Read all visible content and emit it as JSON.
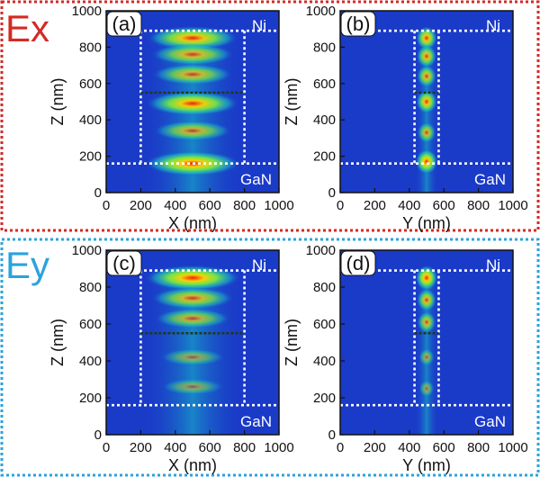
{
  "chart_data": [
    {
      "id": "a",
      "panel_label": "(a)",
      "type": "heatmap",
      "row": "Ex",
      "xlabel": "X (nm)",
      "ylabel": "Z (nm)",
      "xlim": [
        0,
        1000
      ],
      "ylim": [
        0,
        1000
      ],
      "xticks": [
        "0",
        "200",
        "400",
        "600",
        "800",
        "1000"
      ],
      "yticks": [
        "0",
        "200",
        "400",
        "600",
        "800",
        "1000"
      ],
      "region_top": "Ni",
      "region_bottom": "GaN",
      "ni_interface_z": 890,
      "gan_interface_z": 160,
      "inner_interface_z": 550,
      "pillar_x": [
        200,
        800
      ],
      "field_center_x": 500,
      "field_width_x": 600,
      "hotspots_z": [
        850,
        760,
        650,
        490,
        340,
        160
      ],
      "hotspot_intensity": [
        0.85,
        0.65,
        0.6,
        0.9,
        0.55,
        0.95
      ]
    },
    {
      "id": "b",
      "panel_label": "(b)",
      "type": "heatmap",
      "row": "Ex",
      "xlabel": "Y (nm)",
      "ylabel": "Z (nm)",
      "xlim": [
        0,
        1000
      ],
      "ylim": [
        0,
        1000
      ],
      "xticks": [
        "0",
        "200",
        "400",
        "600",
        "800",
        "1000"
      ],
      "yticks": [
        "0",
        "200",
        "400",
        "600",
        "800",
        "1000"
      ],
      "region_top": "Ni",
      "region_bottom": "GaN",
      "ni_interface_z": 890,
      "gan_interface_z": 160,
      "inner_interface_z": 550,
      "pillar_x": [
        430,
        570
      ],
      "field_center_x": 500,
      "field_width_x": 140,
      "hotspots_z": [
        850,
        750,
        640,
        500,
        330,
        170
      ],
      "hotspot_intensity": [
        0.85,
        0.75,
        0.7,
        0.85,
        0.6,
        0.95
      ]
    },
    {
      "id": "c",
      "panel_label": "(c)",
      "type": "heatmap",
      "row": "Ey",
      "xlabel": "X (nm)",
      "ylabel": "Z (nm)",
      "xlim": [
        0,
        1000
      ],
      "ylim": [
        0,
        1000
      ],
      "xticks": [
        "0",
        "200",
        "400",
        "600",
        "800",
        "1000"
      ],
      "yticks": [
        "0",
        "200",
        "400",
        "600",
        "800",
        "1000"
      ],
      "region_top": "Ni",
      "region_bottom": "GaN",
      "ni_interface_z": 890,
      "gan_interface_z": 160,
      "inner_interface_z": 550,
      "pillar_x": [
        200,
        800
      ],
      "field_center_x": 500,
      "field_width_x": 600,
      "hotspots_z": [
        850,
        740,
        630,
        420,
        260
      ],
      "hotspot_intensity": [
        0.95,
        0.65,
        0.5,
        0.25,
        0.2
      ]
    },
    {
      "id": "d",
      "panel_label": "(d)",
      "type": "heatmap",
      "row": "Ey",
      "xlabel": "Y (nm)",
      "ylabel": "Z (nm)",
      "xlim": [
        0,
        1000
      ],
      "ylim": [
        0,
        1000
      ],
      "xticks": [
        "0",
        "200",
        "400",
        "600",
        "800",
        "1000"
      ],
      "yticks": [
        "0",
        "200",
        "400",
        "600",
        "800",
        "1000"
      ],
      "region_top": "Ni",
      "region_bottom": "GaN",
      "ni_interface_z": 890,
      "gan_interface_z": 160,
      "inner_interface_z": 550,
      "pillar_x": [
        430,
        570
      ],
      "field_center_x": 500,
      "field_width_x": 140,
      "hotspots_z": [
        850,
        730,
        610,
        420,
        250
      ],
      "hotspot_intensity": [
        0.95,
        0.7,
        0.6,
        0.3,
        0.25
      ]
    }
  ],
  "groups": [
    {
      "label": "Ex",
      "color": "#d42a25"
    },
    {
      "label": "Ey",
      "color": "#2ba3dc"
    }
  ],
  "colors": {
    "background_field": "#1a3ac8",
    "interface_line": "#ffffff",
    "inner_interface_line": "#1d3a1d"
  }
}
